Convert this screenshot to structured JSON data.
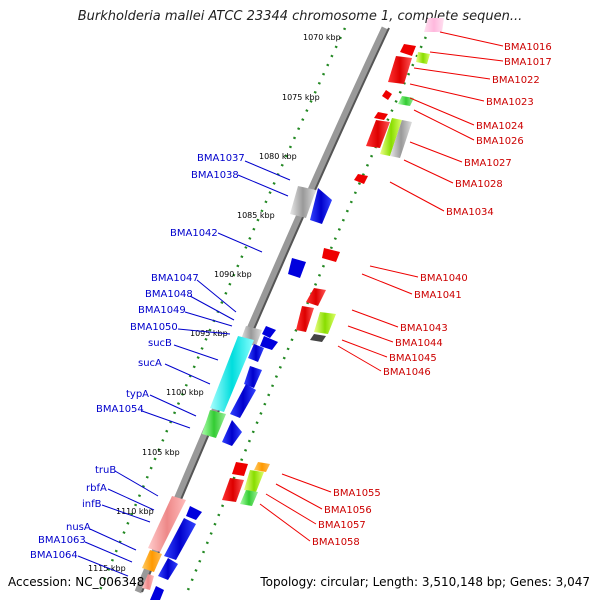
{
  "title": "Burkholderia mallei ATCC 23344 chromosome 1, complete sequen...",
  "footer": {
    "accession": "Accession: NC_006348",
    "stats": "Topology: circular; Length: 3,510,148 bp; Genes: 3,047"
  },
  "kbp_ticks": [
    "1070 kbp",
    "1075 kbp",
    "1080 kbp",
    "1085 kbp",
    "1090 kbp",
    "1095 kbp",
    "1100 kbp",
    "1105 kbp",
    "1110 kbp",
    "1115 kbp"
  ],
  "genes_left": [
    "BMA1037",
    "BMA1038",
    "BMA1042",
    "BMA1047",
    "BMA1048",
    "BMA1049",
    "BMA1050",
    "sucB",
    "sucA",
    "typA",
    "BMA1054",
    "truB",
    "rbfA",
    "infB",
    "nusA",
    "BMA1063",
    "BMA1064"
  ],
  "genes_right": [
    "BMA1016",
    "BMA1017",
    "BMA1022",
    "BMA1023",
    "BMA1024",
    "BMA1026",
    "BMA1027",
    "BMA1028",
    "BMA1034",
    "BMA1040",
    "BMA1041",
    "BMA1043",
    "BMA1044",
    "BMA1045",
    "BMA1046",
    "BMA1055",
    "BMA1056",
    "BMA1057",
    "BMA1058"
  ],
  "colors": {
    "forward": "#0000dd",
    "reverse": "#ee0000",
    "backbone": "#777777",
    "tick": "#228822"
  }
}
